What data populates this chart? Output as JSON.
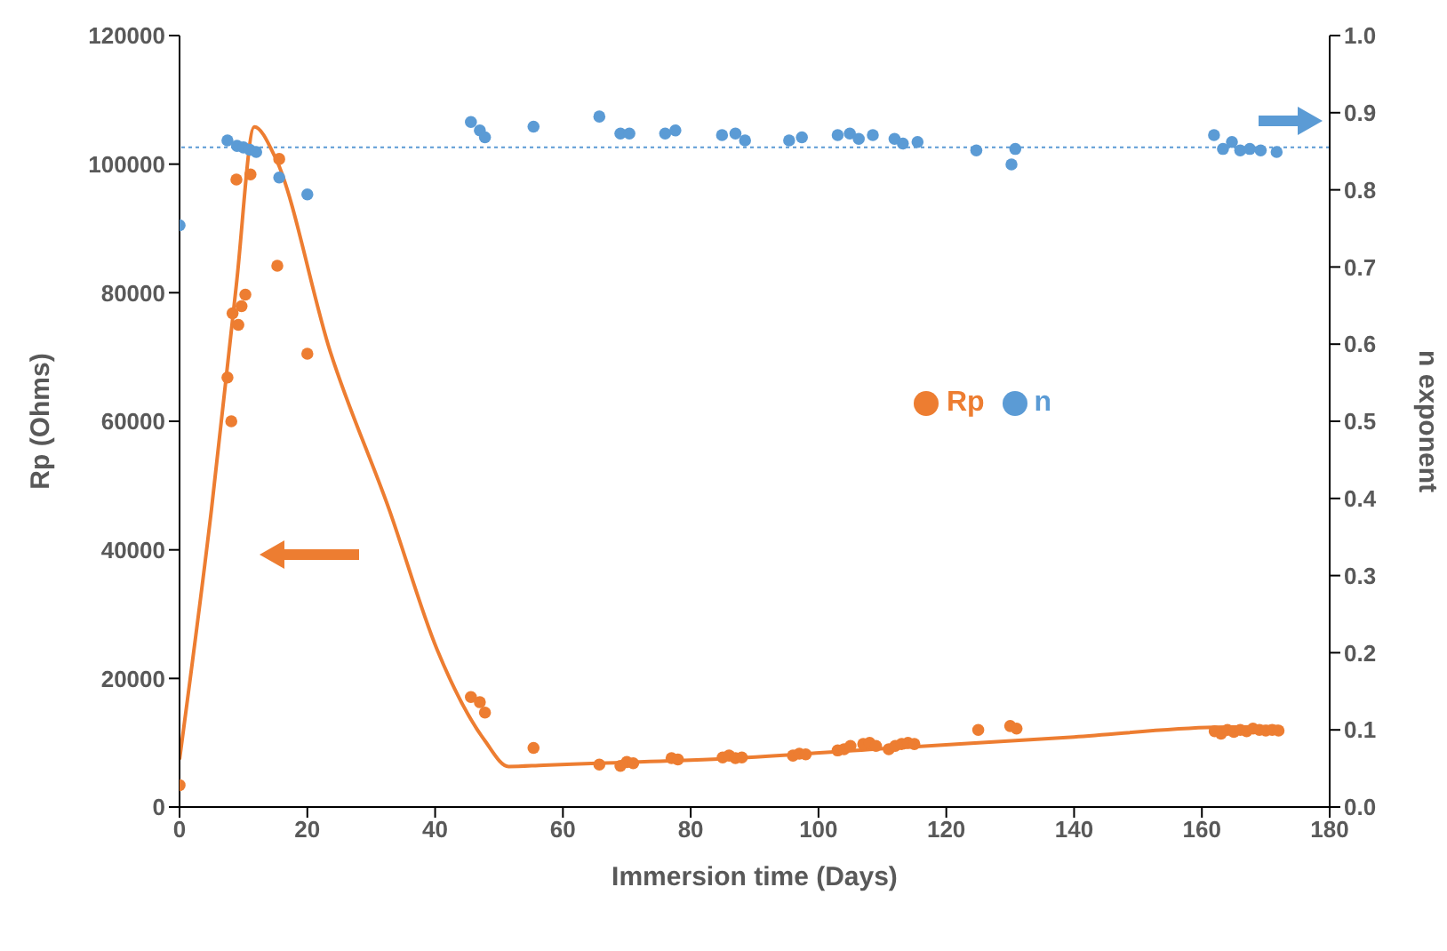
{
  "chart_data": {
    "type": "scatter",
    "xlabel": "Immersion time (Days)",
    "ylabel": "Rp (Ohms)",
    "y2label": "n exponent",
    "xlim": [
      0,
      180
    ],
    "xticks": [
      0,
      20,
      40,
      60,
      80,
      100,
      120,
      140,
      160,
      180
    ],
    "ylim": [
      0,
      120000
    ],
    "yticks": [
      0,
      20000,
      40000,
      60000,
      80000,
      100000,
      120000
    ],
    "y2lim": [
      0,
      1
    ],
    "y2ticks": [
      {
        "value": 0,
        "label": "0.0"
      },
      {
        "value": 0.1,
        "label": "0.1"
      },
      {
        "value": 0.2,
        "label": "0.2"
      },
      {
        "value": 0.3,
        "label": "0.3"
      },
      {
        "value": 0.4,
        "label": "0.4"
      },
      {
        "value": 0.5,
        "label": "0.5"
      },
      {
        "value": 0.6,
        "label": "0.6"
      },
      {
        "value": 0.7,
        "label": "0.7"
      },
      {
        "value": 0.8,
        "label": "0.8"
      },
      {
        "value": 0.9,
        "label": "0.9"
      },
      {
        "value": 1,
        "label": "1.0"
      }
    ],
    "grid": false,
    "legend": "right",
    "marker": "circle",
    "ref_lines": [
      {
        "axis": "y2",
        "value": 0.855,
        "color": "#5b9bd5",
        "line_style": "dotted"
      }
    ],
    "series": [
      {
        "name": "Rp",
        "color": "#ed7d31",
        "x": [
          0,
          7.5,
          8.1,
          8.3,
          8.9,
          9.2,
          9.7,
          10.3,
          11.1,
          15.3,
          15.6,
          20,
          45.6,
          47,
          47.8,
          55.4,
          65.7,
          69,
          70,
          71,
          77,
          78,
          85,
          86,
          87,
          88,
          96,
          97,
          98,
          103,
          104,
          105,
          107,
          108,
          109,
          111,
          112,
          113,
          114,
          115,
          125,
          130,
          131,
          162,
          163,
          164,
          165,
          166,
          167,
          168,
          169,
          170,
          171,
          172
        ],
        "values": [
          3400,
          66800,
          60000,
          76800,
          97600,
          75000,
          77900,
          79700,
          98400,
          84200,
          100800,
          70500,
          17100,
          16300,
          14700,
          9200,
          6600,
          6400,
          7000,
          6800,
          7600,
          7400,
          7700,
          8000,
          7600,
          7700,
          8000,
          8300,
          8200,
          8800,
          9000,
          9500,
          9800,
          10000,
          9500,
          9000,
          9500,
          9800,
          10000,
          9800,
          12000,
          12600,
          12200,
          11800,
          11400,
          12000,
          11700,
          12000,
          11800,
          12200,
          12000,
          11900,
          12000,
          11900
        ]
      },
      {
        "name": "n",
        "axis": "y2",
        "color": "#5b9bd5",
        "x": [
          0,
          7.5,
          9,
          10,
          11,
          12,
          15.6,
          20,
          45.6,
          47,
          47.8,
          55.4,
          65.7,
          69,
          70.4,
          76,
          77.6,
          84.9,
          87,
          88.5,
          95.4,
          97.4,
          103,
          104.9,
          106.3,
          108.5,
          111.9,
          113.2,
          115.5,
          124.7,
          130.2,
          130.8,
          161.9,
          163.3,
          164.7,
          166,
          167.5,
          169.2,
          171.7
        ],
        "values": [
          0.754,
          0.864,
          0.857,
          0.855,
          0.852,
          0.849,
          0.816,
          0.794,
          0.888,
          0.877,
          0.868,
          0.882,
          0.895,
          0.873,
          0.873,
          0.873,
          0.877,
          0.871,
          0.873,
          0.864,
          0.864,
          0.868,
          0.871,
          0.873,
          0.866,
          0.871,
          0.866,
          0.86,
          0.862,
          0.851,
          0.833,
          0.853,
          0.871,
          0.853,
          0.862,
          0.851,
          0.853,
          0.851,
          0.849
        ]
      },
      {
        "type": "line",
        "color": "#ed7d31",
        "marker": "none",
        "x": [
          0,
          5,
          8.9,
          11.7,
          15,
          23.6,
          32.8,
          40.3,
          47.8,
          51.5,
          57,
          65.4,
          85,
          112,
          140,
          162,
          172
        ],
        "values": [
          7400,
          46300,
          81300,
          105800,
          101000,
          70800,
          46300,
          24500,
          10300,
          6300,
          6500,
          6800,
          7500,
          9200,
          10900,
          12400,
          12500
        ]
      }
    ]
  }
}
